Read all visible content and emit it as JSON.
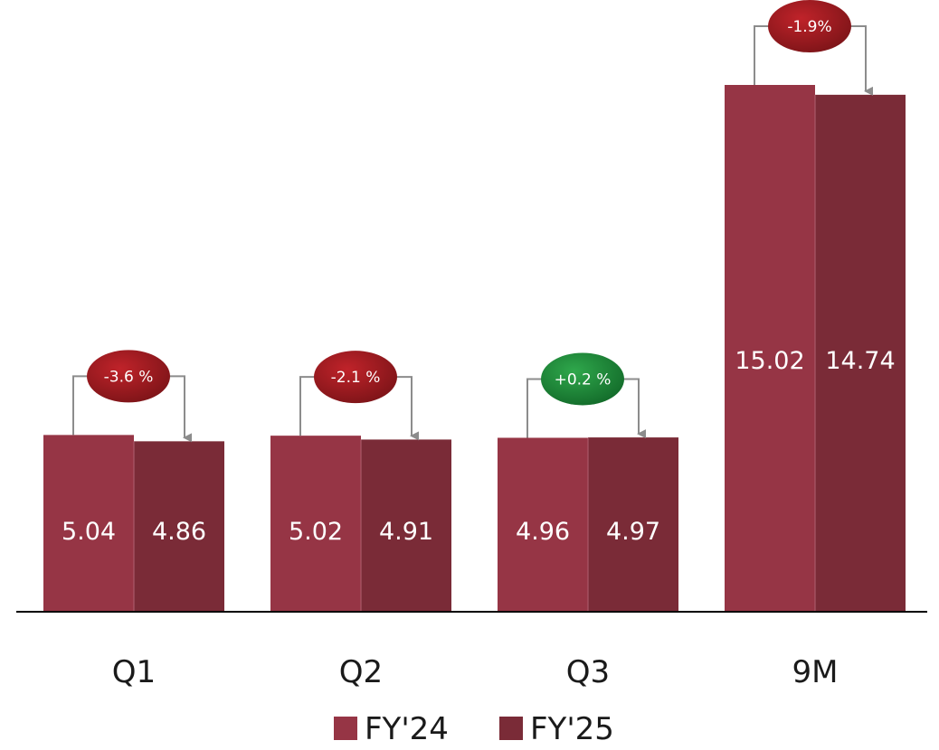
{
  "chart_data": {
    "type": "bar",
    "categories": [
      "Q1",
      "Q2",
      "Q3",
      "9M"
    ],
    "series": [
      {
        "name": "FY'24",
        "values": [
          5.04,
          5.02,
          4.96,
          15.02
        ]
      },
      {
        "name": "FY'25",
        "values": [
          4.86,
          4.91,
          4.97,
          14.74
        ]
      }
    ],
    "value_labels": [
      [
        "5.04",
        "5.02",
        "4.96",
        "15.02"
      ],
      [
        "4.86",
        "4.91",
        "4.97",
        "14.74"
      ]
    ],
    "changes": [
      "-3.6 %",
      "-2.1 %",
      "+0.2 %",
      "-1.9%"
    ],
    "change_direction": [
      "negative",
      "negative",
      "positive",
      "negative"
    ],
    "colors": {
      "fy24": "#963545",
      "fy25": "#7a2b37",
      "negative_badge": "#9c1a1f",
      "positive_badge": "#1f8a3a",
      "arrow": "#8c8c8c",
      "axis": "#000000"
    },
    "ylim": [
      0,
      16
    ],
    "grid": false,
    "legend_position": "bottom-center",
    "title": "",
    "xlabel": "",
    "ylabel": ""
  }
}
